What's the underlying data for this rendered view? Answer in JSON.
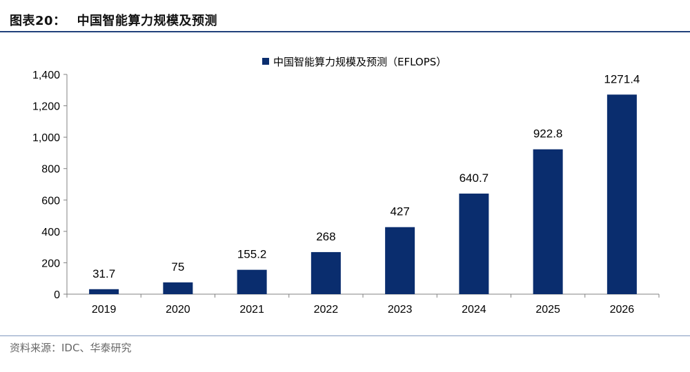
{
  "figure": {
    "number_label": "图表20：",
    "title": "中国智能算力规模及预测",
    "source": "资料来源：IDC、华泰研究"
  },
  "colors": {
    "bar": "#0a2d6e",
    "rule": "#1f3f7a",
    "axis": "#808080"
  },
  "chart_data": {
    "type": "bar",
    "categories": [
      "2019",
      "2020",
      "2021",
      "2022",
      "2023",
      "2024",
      "2025",
      "2026"
    ],
    "series": [
      {
        "name": "中国智能算力规模及预测（EFLOPS）",
        "values": [
          31.7,
          75,
          155.2,
          268,
          427,
          640.7,
          922.8,
          1271.4
        ],
        "labels": [
          "31.7",
          "75",
          "155.2",
          "268",
          "427",
          "640.7",
          "922.8",
          "1271.4"
        ]
      }
    ],
    "ylim": [
      0,
      1400
    ],
    "yticks": [
      0,
      200,
      400,
      600,
      800,
      1000,
      1200,
      1400
    ],
    "ytick_labels": [
      "0",
      "200",
      "400",
      "600",
      "800",
      "1,000",
      "1,200",
      "1,400"
    ],
    "legend_position": "top-center",
    "grid": false,
    "xlabel": "",
    "ylabel": ""
  }
}
